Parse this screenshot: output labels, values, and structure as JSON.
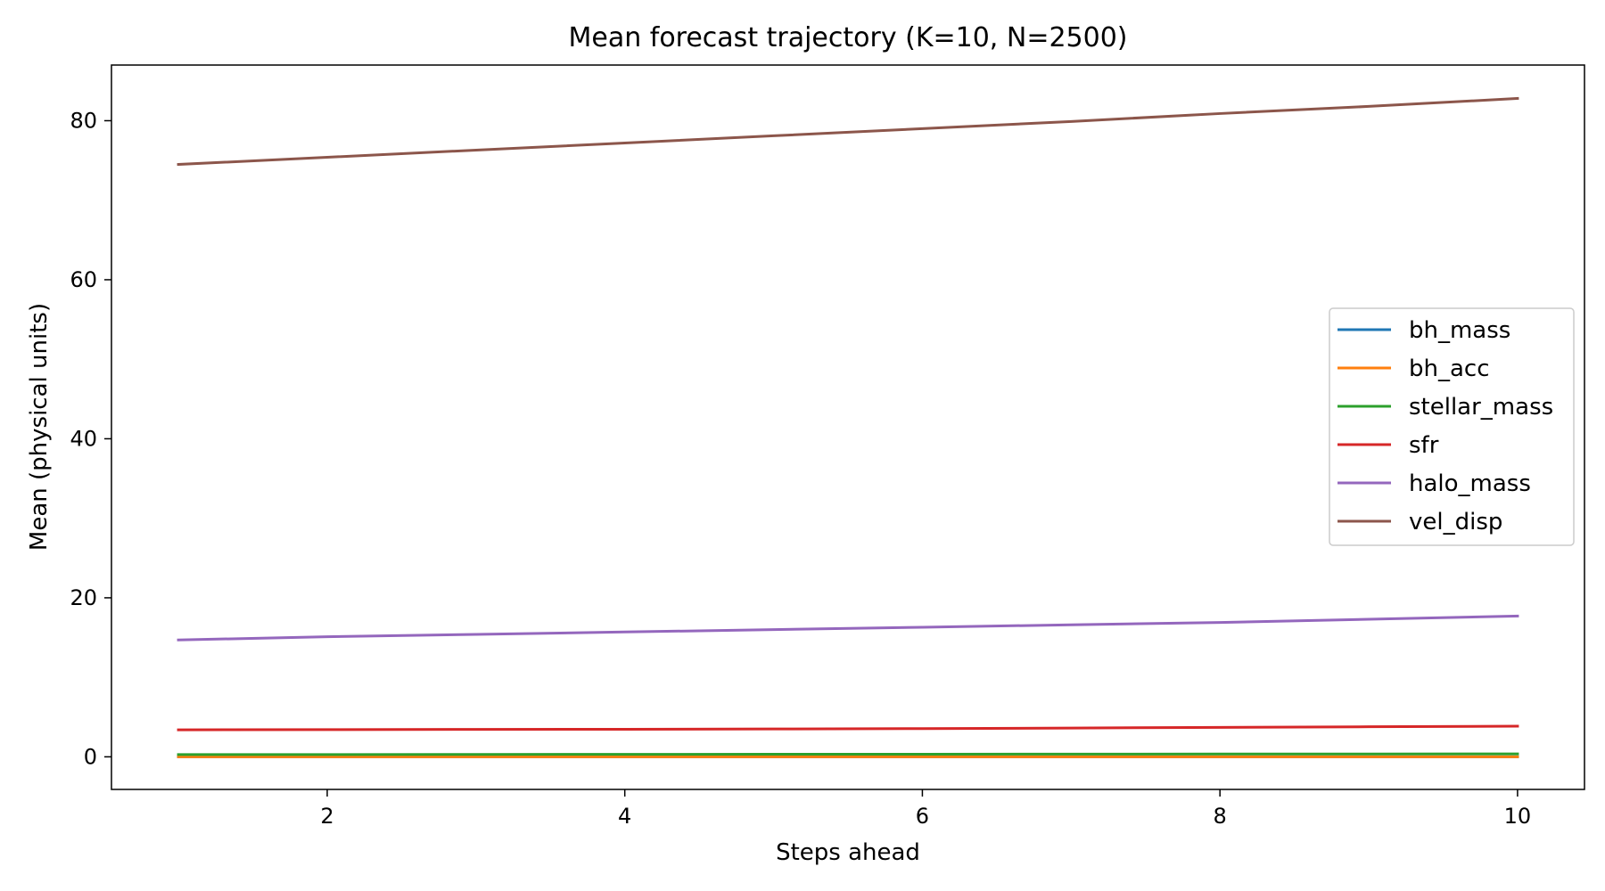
{
  "chart_data": {
    "type": "line",
    "title": "Mean forecast trajectory (K=10, N=2500)",
    "xlabel": "Steps ahead",
    "ylabel": "Mean (physical units)",
    "xlim": [
      0.55,
      10.45
    ],
    "ylim": [
      -4.1,
      87.0
    ],
    "x": [
      1,
      2,
      3,
      4,
      5,
      6,
      7,
      8,
      9,
      10
    ],
    "xticks": [
      2,
      4,
      6,
      8,
      10
    ],
    "yticks": [
      0,
      20,
      40,
      60,
      80
    ],
    "grid": false,
    "legend_position": "center-right",
    "series": [
      {
        "name": "bh_mass",
        "color": "#1f77b4",
        "values": [
          0.01,
          0.01,
          0.01,
          0.01,
          0.01,
          0.01,
          0.01,
          0.01,
          0.01,
          0.01
        ]
      },
      {
        "name": "bh_acc",
        "color": "#ff7f0e",
        "values": [
          0.0,
          0.0,
          0.0,
          0.0,
          0.0,
          0.0,
          0.0,
          0.0,
          0.0,
          0.0
        ]
      },
      {
        "name": "stellar_mass",
        "color": "#2ca02c",
        "values": [
          0.28,
          0.29,
          0.3,
          0.31,
          0.32,
          0.33,
          0.34,
          0.35,
          0.36,
          0.37
        ]
      },
      {
        "name": "sfr",
        "color": "#d62728",
        "values": [
          3.4,
          3.42,
          3.45,
          3.47,
          3.5,
          3.55,
          3.62,
          3.7,
          3.78,
          3.85
        ]
      },
      {
        "name": "halo_mass",
        "color": "#9467bd",
        "values": [
          14.7,
          15.1,
          15.4,
          15.7,
          16.0,
          16.3,
          16.6,
          16.9,
          17.3,
          17.7
        ]
      },
      {
        "name": "vel_disp",
        "color": "#8c564b",
        "values": [
          74.5,
          75.4,
          76.3,
          77.2,
          78.1,
          79.0,
          79.9,
          80.9,
          81.8,
          82.8
        ]
      }
    ]
  }
}
